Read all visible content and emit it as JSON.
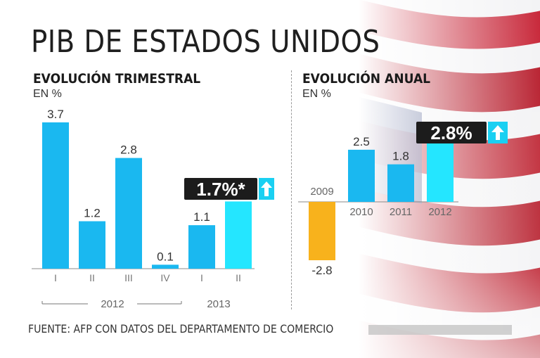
{
  "title": "PIB DE ESTADOS UNIDOS",
  "source": "FUENTE: AFP CON DATOS DEL DEPARTAMENTO DE COMERCIO",
  "colors": {
    "bar": "#1ab8f0",
    "bar_highlight": "#24e6ff",
    "negative": "#f8b21c",
    "badge_bg": "#1c1c1c",
    "badge_text": "#ffffff",
    "arrow_bg": "#1ad0f2"
  },
  "quarterly": {
    "subtitle": "EVOLUCIÓN TRIMESTRAL",
    "unit": "EN %",
    "badge": "1.7%*",
    "arrow_icon": "up-arrow-icon",
    "years": [
      "2012",
      "2013"
    ]
  },
  "annual": {
    "subtitle": "EVOLUCIÓN ANUAL",
    "unit": "EN %",
    "badge": "2.8%",
    "arrow_icon": "up-arrow-icon"
  },
  "chart_data": [
    {
      "type": "bar",
      "title": "EVOLUCIÓN TRIMESTRAL",
      "ylabel": "EN %",
      "categories": [
        "I",
        "II",
        "III",
        "IV",
        "I",
        "II"
      ],
      "groups": [
        {
          "label": "2012",
          "count": 4
        },
        {
          "label": "2013",
          "count": 2
        }
      ],
      "values": [
        3.7,
        1.2,
        2.8,
        0.1,
        1.1,
        1.7
      ],
      "labels": [
        "3.7",
        "1.2",
        "2.8",
        "0.1",
        "1.1",
        ""
      ],
      "highlight_index": 5,
      "ylim": [
        0,
        3.7
      ]
    },
    {
      "type": "bar",
      "title": "EVOLUCIÓN ANUAL",
      "ylabel": "EN %",
      "categories": [
        "2009",
        "2010",
        "2011",
        "2012"
      ],
      "values": [
        -2.8,
        2.5,
        1.8,
        2.8
      ],
      "labels": [
        "-2.8",
        "2.5",
        "1.8",
        ""
      ],
      "highlight_index": 3
    }
  ]
}
